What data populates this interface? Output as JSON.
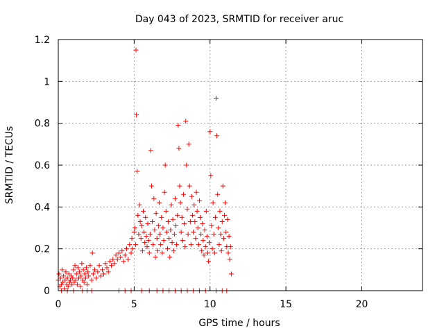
{
  "chart_data": {
    "type": "scatter",
    "title": "Day 043 of 2023, SRMTID for receiver aruc",
    "xlabel": "GPS time / hours",
    "ylabel": "SRMTID / TECUs",
    "xlim": [
      0,
      24
    ],
    "ylim": [
      0,
      1.2
    ],
    "xticks": [
      0,
      5,
      10,
      15,
      20
    ],
    "xtick_labels": [
      "0",
      "5",
      "10",
      "15",
      "20"
    ],
    "yticks": [
      0,
      0.2,
      0.4,
      0.6,
      0.8,
      1,
      1.2
    ],
    "ytick_labels": [
      "0",
      "0.2",
      "0.4",
      "0.6",
      "0.8",
      "1",
      "1.2"
    ],
    "grid": true,
    "marker": "+",
    "color": "#ff0000",
    "series": [
      {
        "name": "SRMTID",
        "points": [
          [
            0.0,
            0.05
          ],
          [
            0.05,
            0.08
          ],
          [
            0.1,
            0.02
          ],
          [
            0.15,
            0.06
          ],
          [
            0.2,
            0.03
          ],
          [
            0.25,
            0.1
          ],
          [
            0.3,
            0.04
          ],
          [
            0.35,
            0.07
          ],
          [
            0.4,
            0.01
          ],
          [
            0.45,
            0.05
          ],
          [
            0.5,
            0.09
          ],
          [
            0.55,
            0.03
          ],
          [
            0.6,
            0.06
          ],
          [
            0.65,
            0.02
          ],
          [
            0.7,
            0.08
          ],
          [
            0.75,
            0.04
          ],
          [
            0.8,
            0.05
          ],
          [
            0.85,
            0.07
          ],
          [
            0.9,
            0.03
          ],
          [
            0.95,
            0.06
          ],
          [
            1.0,
            0.1
          ],
          [
            1.05,
            0.04
          ],
          [
            1.1,
            0.12
          ],
          [
            1.15,
            0.05
          ],
          [
            1.2,
            0.08
          ],
          [
            1.25,
            0.03
          ],
          [
            1.3,
            0.11
          ],
          [
            1.35,
            0.06
          ],
          [
            1.4,
            0.09
          ],
          [
            1.45,
            0.02
          ],
          [
            1.5,
            0.07
          ],
          [
            1.55,
            0.13
          ],
          [
            1.6,
            0.05
          ],
          [
            1.65,
            0.1
          ],
          [
            1.7,
            0.04
          ],
          [
            1.75,
            0.08
          ],
          [
            1.8,
            0.06
          ],
          [
            1.85,
            0.11
          ],
          [
            1.9,
            0.03
          ],
          [
            1.95,
            0.09
          ],
          [
            2.0,
            0.07
          ],
          [
            2.1,
            0.12
          ],
          [
            2.2,
            0.05
          ],
          [
            2.25,
            0.18
          ],
          [
            2.3,
            0.08
          ],
          [
            2.4,
            0.1
          ],
          [
            2.5,
            0.06
          ],
          [
            2.6,
            0.09
          ],
          [
            2.7,
            0.12
          ],
          [
            2.8,
            0.07
          ],
          [
            2.9,
            0.1
          ],
          [
            3.0,
            0.08
          ],
          [
            3.1,
            0.13
          ],
          [
            3.2,
            0.11
          ],
          [
            3.3,
            0.09
          ],
          [
            3.4,
            0.14
          ],
          [
            3.5,
            0.12
          ],
          [
            3.6,
            0.15
          ],
          [
            3.7,
            0.13
          ],
          [
            3.8,
            0.17
          ],
          [
            3.9,
            0.15
          ],
          [
            4.0,
            0.18
          ],
          [
            4.1,
            0.16
          ],
          [
            4.2,
            0.19
          ],
          [
            4.3,
            0.14
          ],
          [
            4.4,
            0.17
          ],
          [
            4.5,
            0.2
          ],
          [
            4.6,
            0.15
          ],
          [
            4.7,
            0.22
          ],
          [
            4.8,
            0.18
          ],
          [
            4.85,
            0.25
          ],
          [
            4.9,
            0.2
          ],
          [
            5.0,
            0.28
          ],
          [
            5.05,
            0.3
          ],
          [
            5.1,
            0.22
          ],
          [
            5.12,
            1.15
          ],
          [
            5.15,
            0.84
          ],
          [
            5.2,
            0.57
          ],
          [
            5.25,
            0.36
          ],
          [
            5.3,
            0.27
          ],
          [
            5.35,
            0.41
          ],
          [
            5.4,
            0.33
          ],
          [
            5.45,
            0.25
          ],
          [
            5.5,
            0.31
          ],
          [
            5.55,
            0.19
          ],
          [
            5.6,
            0.38
          ],
          [
            5.65,
            0.28
          ],
          [
            5.7,
            0.23
          ],
          [
            5.75,
            0.35
          ],
          [
            5.8,
            0.26
          ],
          [
            5.85,
            0.21
          ],
          [
            5.9,
            0.32
          ],
          [
            5.95,
            0.24
          ],
          [
            6.0,
            0.18
          ],
          [
            6.05,
            0.27
          ],
          [
            6.1,
            0.67
          ],
          [
            6.15,
            0.5
          ],
          [
            6.2,
            0.33
          ],
          [
            6.25,
            0.22
          ],
          [
            6.3,
            0.44
          ],
          [
            6.35,
            0.29
          ],
          [
            6.4,
            0.16
          ],
          [
            6.45,
            0.37
          ],
          [
            6.5,
            0.25
          ],
          [
            6.55,
            0.19
          ],
          [
            6.6,
            0.31
          ],
          [
            6.65,
            0.42
          ],
          [
            6.7,
            0.27
          ],
          [
            6.75,
            0.22
          ],
          [
            6.8,
            0.35
          ],
          [
            6.85,
            0.18
          ],
          [
            6.9,
            0.3
          ],
          [
            6.95,
            0.24
          ],
          [
            7.0,
            0.47
          ],
          [
            7.05,
            0.6
          ],
          [
            7.1,
            0.38
          ],
          [
            7.15,
            0.28
          ],
          [
            7.2,
            0.2
          ],
          [
            7.25,
            0.33
          ],
          [
            7.3,
            0.25
          ],
          [
            7.35,
            0.16
          ],
          [
            7.4,
            0.29
          ],
          [
            7.45,
            0.41
          ],
          [
            7.5,
            0.23
          ],
          [
            7.55,
            0.34
          ],
          [
            7.6,
            0.19
          ],
          [
            7.65,
            0.27
          ],
          [
            7.7,
            0.44
          ],
          [
            7.75,
            0.31
          ],
          [
            7.8,
            0.22
          ],
          [
            7.85,
            0.36
          ],
          [
            7.9,
            0.79
          ],
          [
            7.95,
            0.68
          ],
          [
            8.0,
            0.5
          ],
          [
            8.05,
            0.42
          ],
          [
            8.1,
            0.28
          ],
          [
            8.15,
            0.35
          ],
          [
            8.2,
            0.24
          ],
          [
            8.25,
            0.46
          ],
          [
            8.3,
            0.32
          ],
          [
            8.35,
            0.21
          ],
          [
            8.4,
            0.81
          ],
          [
            8.45,
            0.6
          ],
          [
            8.5,
            0.39
          ],
          [
            8.55,
            0.27
          ],
          [
            8.6,
            0.7
          ],
          [
            8.65,
            0.5
          ],
          [
            8.7,
            0.33
          ],
          [
            8.75,
            0.22
          ],
          [
            8.8,
            0.45
          ],
          [
            8.85,
            0.36
          ],
          [
            8.9,
            0.28
          ],
          [
            8.95,
            0.41
          ],
          [
            9.0,
            0.33
          ],
          [
            9.05,
            0.25
          ],
          [
            9.1,
            0.47
          ],
          [
            9.15,
            0.38
          ],
          [
            9.2,
            0.3
          ],
          [
            9.25,
            0.22
          ],
          [
            9.3,
            0.43
          ],
          [
            9.35,
            0.35
          ],
          [
            9.4,
            0.27
          ],
          [
            9.45,
            0.19
          ],
          [
            9.5,
            0.32
          ],
          [
            9.55,
            0.24
          ],
          [
            9.6,
            0.17
          ],
          [
            9.65,
            0.29
          ],
          [
            9.7,
            0.21
          ],
          [
            9.75,
            0.38
          ],
          [
            9.8,
            0.26
          ],
          [
            9.85,
            0.18
          ],
          [
            9.9,
            0.14
          ],
          [
            9.95,
            0.23
          ],
          [
            10.0,
            0.76
          ],
          [
            10.05,
            0.55
          ],
          [
            10.1,
            0.31
          ],
          [
            10.15,
            0.2
          ],
          [
            10.2,
            0.42
          ],
          [
            10.25,
            0.27
          ],
          [
            10.3,
            0.18
          ],
          [
            10.35,
            0.35
          ],
          [
            10.4,
            0.92
          ],
          [
            10.45,
            0.74
          ],
          [
            10.5,
            0.46
          ],
          [
            10.55,
            0.3
          ],
          [
            10.6,
            0.22
          ],
          [
            10.65,
            0.38
          ],
          [
            10.7,
            0.27
          ],
          [
            10.75,
            0.19
          ],
          [
            10.8,
            0.33
          ],
          [
            10.85,
            0.5
          ],
          [
            10.9,
            0.25
          ],
          [
            10.95,
            0.36
          ],
          [
            11.0,
            0.42
          ],
          [
            11.05,
            0.28
          ],
          [
            11.1,
            0.21
          ],
          [
            11.15,
            0.34
          ],
          [
            11.2,
            0.18
          ],
          [
            11.25,
            0.26
          ],
          [
            11.3,
            0.15
          ],
          [
            11.35,
            0.21
          ],
          [
            11.4,
            0.08
          ],
          [
            0.2,
            0.0
          ],
          [
            0.6,
            0.0
          ],
          [
            1.0,
            0.0
          ],
          [
            1.6,
            0.0
          ],
          [
            1.9,
            0.0
          ],
          [
            2.2,
            0.0
          ],
          [
            4.0,
            0.0
          ],
          [
            4.4,
            0.0
          ],
          [
            4.8,
            0.0
          ],
          [
            5.5,
            0.0
          ],
          [
            6.0,
            0.0
          ],
          [
            6.5,
            0.0
          ],
          [
            6.9,
            0.0
          ],
          [
            7.3,
            0.0
          ],
          [
            7.7,
            0.0
          ],
          [
            8.1,
            0.0
          ],
          [
            8.5,
            0.0
          ],
          [
            8.9,
            0.0
          ],
          [
            9.3,
            0.0
          ],
          [
            9.7,
            0.0
          ],
          [
            10.4,
            0.0
          ],
          [
            10.8,
            0.0
          ],
          [
            11.1,
            0.0
          ]
        ]
      }
    ]
  }
}
